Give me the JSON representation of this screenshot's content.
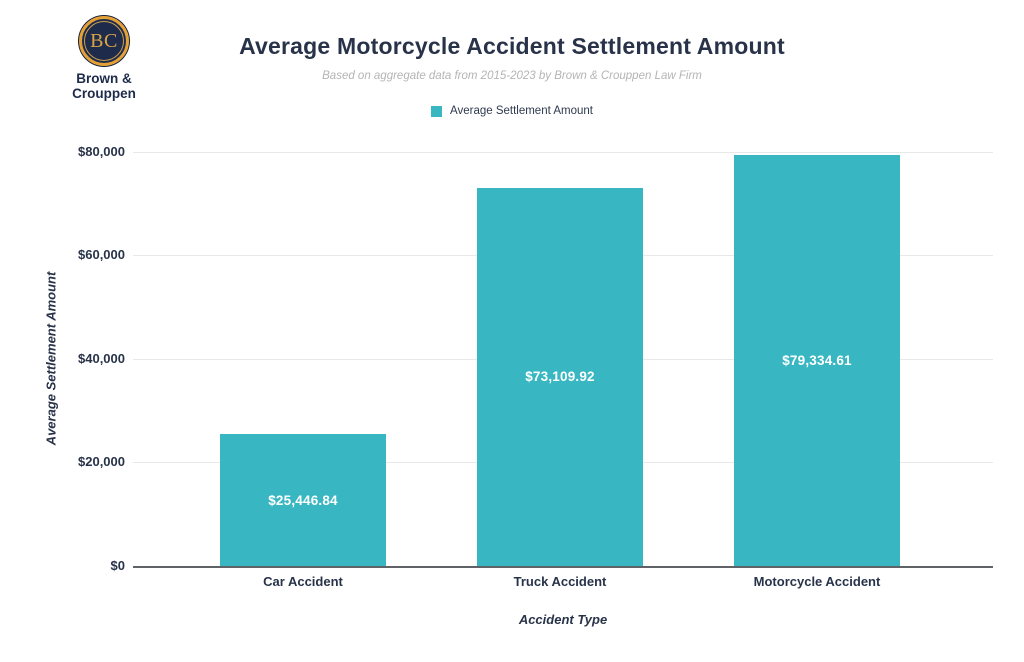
{
  "brand": {
    "monogram": "BC",
    "name_line1": "Brown &",
    "name_line2": "Crouppen",
    "navy": "#1e2b4a",
    "gold": "#e3a138"
  },
  "chart_data": {
    "type": "bar",
    "title": "Average Motorcycle Accident Settlement Amount",
    "subtitle": "Based on aggregate data from 2015-2023 by Brown & Crouppen Law Firm",
    "legend_label": "Average Settlement Amount",
    "legend_position": "top",
    "xlabel": "Accident Type",
    "ylabel": "Average Settlement Amount",
    "categories": [
      "Car Accident",
      "Truck Accident",
      "Motorcycle Accident"
    ],
    "values": [
      25446.84,
      73109.92,
      79334.61
    ],
    "value_labels": [
      "$25,446.84",
      "$73,109.92",
      "$79,334.61"
    ],
    "yticks": [
      "$80,000",
      "$60,000",
      "$40,000",
      "$20,000",
      "$0"
    ],
    "ylim": [
      0,
      80000
    ],
    "grid": true,
    "bar_color": "#38b7c2",
    "gridline_color": "#e8e8e8",
    "axis_line_color": "#5f6368"
  }
}
